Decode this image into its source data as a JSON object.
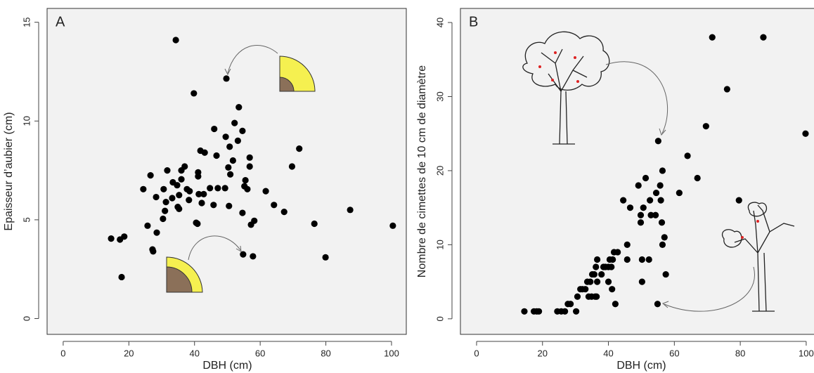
{
  "chart_data": [
    {
      "type": "scatter",
      "label": "A",
      "x_label": "DBH (cm)",
      "y_label": "Epaisseur d’aubier (cm)",
      "color": "#000000",
      "xlim": [
        -4.9,
        104.5
      ],
      "ylim": [
        -0.8,
        15.7
      ],
      "xticks": [
        0,
        20,
        40,
        60,
        80,
        100
      ],
      "yticks": [
        0,
        5,
        10,
        15
      ],
      "x": [
        14.6,
        17.3,
        18.6,
        17.8,
        34.3,
        49.7,
        39.8,
        53.5,
        52.2,
        54.6,
        46.0,
        49.5,
        53.2,
        56.8,
        71.9,
        41.8,
        43.1,
        50.7,
        56.8,
        51.7,
        69.7,
        26.6,
        31.7,
        36.0,
        37.0,
        41.1,
        41.1,
        46.7,
        50.3,
        50.9,
        24.4,
        30.6,
        33.4,
        34.7,
        36.0,
        33.2,
        35.3,
        37.7,
        38.5,
        38.3,
        28.3,
        31.3,
        41.3,
        42.8,
        34.9,
        35.3,
        42.2,
        45.8,
        44.7,
        47.1,
        49.3,
        50.5,
        55.2,
        56.1,
        55.5,
        31.0,
        30.4,
        25.7,
        28.5,
        40.5,
        40.9,
        54.6,
        57.2,
        58.2,
        61.7,
        64.2,
        67.3,
        27.2,
        27.4,
        54.8,
        57.8,
        87.4,
        76.5,
        79.9,
        100.4
      ],
      "values": [
        4.05,
        4.0,
        4.15,
        2.1,
        14.1,
        12.15,
        11.4,
        10.7,
        9.9,
        9.5,
        9.6,
        9.2,
        9.0,
        8.15,
        8.6,
        8.5,
        8.4,
        8.7,
        7.7,
        8.0,
        7.7,
        7.25,
        7.5,
        7.5,
        7.7,
        7.4,
        7.2,
        8.25,
        7.65,
        7.3,
        6.55,
        6.55,
        6.9,
        6.75,
        7.05,
        6.1,
        6.25,
        6.55,
        6.45,
        6.0,
        6.15,
        5.9,
        6.3,
        6.3,
        5.65,
        5.55,
        5.85,
        5.75,
        6.6,
        6.6,
        6.6,
        5.7,
        6.7,
        6.55,
        7.0,
        5.45,
        5.05,
        4.7,
        4.35,
        4.85,
        4.8,
        5.35,
        4.75,
        4.95,
        6.45,
        5.75,
        5.4,
        3.5,
        3.4,
        3.25,
        3.15,
        5.5,
        4.8,
        3.1,
        4.7
      ]
    },
    {
      "type": "scatter",
      "label": "B",
      "x_label": "DBH (cm)",
      "y_label": "Nombre de cimettes de 10 cm de diamètre",
      "color": "#000000",
      "xlim": [
        -4.9,
        104.5
      ],
      "ylim": [
        -2.1,
        41.9
      ],
      "xticks": [
        0,
        20,
        40,
        60,
        80,
        100
      ],
      "yticks": [
        0,
        10,
        20,
        30,
        40
      ],
      "x": [
        14.5,
        17.4,
        18.3,
        18.9,
        24.5,
        25.7,
        26.8,
        27.7,
        28.5,
        30.2,
        30.6,
        31.5,
        32.1,
        33.0,
        33.6,
        34.0,
        34.5,
        35.1,
        35.7,
        34.9,
        36.0,
        36.4,
        36.2,
        36.6,
        36.6,
        37.9,
        38.5,
        39.1,
        40.0,
        40.9,
        40.4,
        41.3,
        40.0,
        41.1,
        41.7,
        42.8,
        42.1,
        45.7,
        45.7,
        44.5,
        46.6,
        49.1,
        49.8,
        49.8,
        50.6,
        51.3,
        50.2,
        50.2,
        52.3,
        52.6,
        52.9,
        54.3,
        54.5,
        54.9,
        55.1,
        55.7,
        55.9,
        56.2,
        56.4,
        56.4,
        57.0,
        57.4,
        61.5,
        64.0,
        67.0,
        69.6,
        71.5,
        76.0,
        79.6,
        87.0,
        99.8
      ],
      "values": [
        1,
        1,
        1,
        1,
        1,
        1,
        1,
        2,
        2,
        1,
        3,
        4,
        4,
        4,
        5,
        3,
        5,
        6,
        6,
        3,
        3,
        3,
        7,
        8,
        5,
        6,
        7,
        7,
        7,
        7,
        8,
        8,
        5,
        4,
        9,
        9,
        2,
        8,
        10,
        16,
        15,
        18,
        13,
        14,
        15,
        19,
        8,
        5,
        8,
        16,
        14,
        14,
        17,
        2,
        24,
        18,
        16,
        13,
        20,
        10,
        11,
        6,
        17,
        22,
        19,
        26,
        38,
        31,
        16,
        38,
        25
      ]
    }
  ]
}
